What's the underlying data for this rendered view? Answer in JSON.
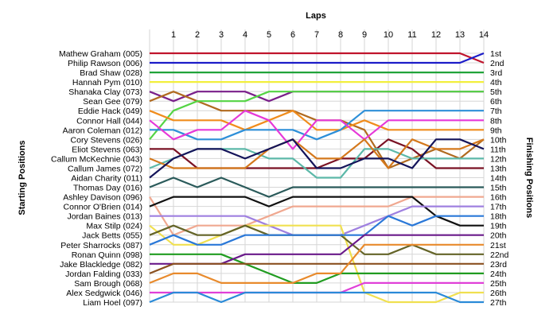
{
  "chart_data": {
    "type": "line",
    "title": "Laps",
    "xlabel": "Laps",
    "ylabel_left": "Starting Positions",
    "ylabel_right": "Finishing Positions",
    "x": [
      0,
      1,
      2,
      3,
      4,
      5,
      6,
      7,
      8,
      9,
      10,
      11,
      12,
      13,
      14
    ],
    "x_tick_labels": [
      "1",
      "2",
      "3",
      "4",
      "5",
      "6",
      "7",
      "8",
      "9",
      "10",
      "11",
      "12",
      "13",
      "14"
    ],
    "ylim": [
      1,
      27
    ],
    "grid": true,
    "start_labels": [
      "Mathew Graham (005)",
      "Philip Rawson (006)",
      "Brad Shaw (028)",
      "Hannah Pym (010)",
      "Shanaka Clay (073)",
      "Sean Gee (079)",
      "Eddie Hack (049)",
      "Connor Hall (044)",
      "Aaron Coleman (012)",
      "Cory Stevens (026)",
      "Eliot Stevens (063)",
      "Callum McKechnie (043)",
      "Callum James (072)",
      "Aidan Charity (011)",
      "Thomas Day (016)",
      "Ashley Davison (096)",
      "Connor O'Brien (014)",
      "Jordan Baines (013)",
      "Max Stilp (024)",
      "Jack Betts (055)",
      "Peter Sharrocks (087)",
      "Ronan Quinn (098)",
      "Jake Blackledge (082)",
      "Jordan Falding (033)",
      "Sam Brough (068)",
      "Alex Sedgwick (046)",
      "Liam Hoel (097)"
    ],
    "finish_labels": [
      "1st",
      "2nd",
      "3rd",
      "4th",
      "5th",
      "6th",
      "7th",
      "8th",
      "9th",
      "10th",
      "11th",
      "12th",
      "13th",
      "14th",
      "15th",
      "16th",
      "17th",
      "18th",
      "19th",
      "20th",
      "21st",
      "22nd",
      "23rd",
      "24th",
      "25th",
      "26th",
      "27th"
    ],
    "series": [
      {
        "color": "#c0142c",
        "values": [
          1,
          1,
          1,
          1,
          1,
          1,
          1,
          1,
          1,
          1,
          1,
          1,
          1,
          1,
          2
        ]
      },
      {
        "color": "#1c1cc8",
        "values": [
          2,
          2,
          2,
          2,
          2,
          2,
          2,
          2,
          2,
          2,
          2,
          2,
          2,
          2,
          1
        ]
      },
      {
        "color": "#21a33a",
        "values": [
          3,
          3,
          3,
          3,
          3,
          3,
          3,
          3,
          3,
          3,
          3,
          3,
          3,
          3,
          3
        ]
      },
      {
        "color": "#f2ef3c",
        "values": [
          4,
          4,
          4,
          4,
          4,
          4,
          4,
          4,
          4,
          4,
          4,
          4,
          4,
          4,
          4
        ]
      },
      {
        "color": "#7a1f8a",
        "values": [
          5,
          6,
          5,
          5,
          5,
          6,
          5,
          5,
          5,
          5,
          5,
          5,
          5,
          5,
          5
        ]
      },
      {
        "color": "#b06a1f",
        "values": [
          6,
          5,
          6,
          7,
          7,
          7,
          7,
          8,
          8,
          9,
          13,
          12,
          11,
          12,
          10
        ]
      },
      {
        "color": "#54d444",
        "values": [
          10,
          7,
          6,
          6,
          6,
          5,
          5,
          5,
          5,
          5,
          5,
          5,
          5,
          5,
          5
        ]
      },
      {
        "color": "#f08c1c",
        "values": [
          7,
          8,
          8,
          8,
          9,
          8,
          7,
          9,
          9,
          8,
          9,
          9,
          9,
          9,
          9
        ]
      },
      {
        "color": "#2d8fd8",
        "values": [
          9,
          9,
          10,
          10,
          9,
          9,
          9,
          10,
          9,
          7,
          7,
          7,
          7,
          7,
          7
        ]
      },
      {
        "color": "#e638d8",
        "values": [
          8,
          10,
          9,
          9,
          7,
          8,
          11,
          8,
          8,
          10,
          8,
          8,
          8,
          8,
          8
        ]
      },
      {
        "color": "#7a1224",
        "values": [
          11,
          11,
          13,
          13,
          13,
          13,
          13,
          13,
          12,
          12,
          10,
          11,
          13,
          13,
          13
        ]
      },
      {
        "color": "#5cb8a8",
        "values": [
          13,
          12,
          11,
          11,
          11,
          12,
          12,
          14,
          14,
          11,
          11,
          12,
          12,
          12,
          12
        ]
      },
      {
        "color": "#d4781c",
        "values": [
          12,
          13,
          13,
          13,
          13,
          11,
          10,
          12,
          12,
          10,
          13,
          10,
          11,
          11,
          10
        ]
      },
      {
        "color": "#14145a",
        "values": [
          14,
          12,
          11,
          11,
          12,
          11,
          10,
          13,
          13,
          12,
          12,
          13,
          10,
          10,
          11
        ]
      },
      {
        "color": "#2a5a5a",
        "values": [
          15,
          14,
          15,
          14,
          15,
          16,
          15,
          15,
          15,
          15,
          15,
          15,
          15,
          15,
          15
        ]
      },
      {
        "color": "#f0a890",
        "values": [
          16,
          20,
          19,
          19,
          19,
          18,
          17,
          17,
          17,
          17,
          17,
          16,
          16,
          16,
          16
        ]
      },
      {
        "color": "#111111",
        "values": [
          17,
          16,
          16,
          16,
          16,
          17,
          16,
          16,
          16,
          16,
          16,
          16,
          18,
          19,
          19
        ]
      },
      {
        "color": "#9f80e0",
        "values": [
          18,
          18,
          18,
          18,
          18,
          19,
          20,
          20,
          20,
          19,
          18,
          17,
          17,
          17,
          17
        ]
      },
      {
        "color": "#f0e050",
        "values": [
          19,
          21,
          21,
          20,
          19,
          19,
          19,
          19,
          19,
          26,
          27,
          27,
          27,
          26,
          26
        ]
      },
      {
        "color": "#646428",
        "values": [
          20,
          19,
          20,
          20,
          19,
          20,
          20,
          20,
          20,
          22,
          22,
          21,
          22,
          22,
          22
        ]
      },
      {
        "color": "#2a78d8",
        "values": [
          21,
          20,
          21,
          21,
          20,
          20,
          20,
          20,
          20,
          20,
          18,
          19,
          18,
          18,
          18
        ]
      },
      {
        "color": "#209c20",
        "values": [
          22,
          22,
          22,
          22,
          23,
          24,
          25,
          25,
          24,
          24,
          24,
          24,
          24,
          24,
          24
        ]
      },
      {
        "color": "#6a1a8a",
        "values": [
          23,
          23,
          23,
          23,
          22,
          22,
          22,
          22,
          22,
          20,
          20,
          20,
          20,
          20,
          20
        ]
      },
      {
        "color": "#8a5020",
        "values": [
          24,
          23,
          23,
          23,
          23,
          23,
          23,
          23,
          23,
          23,
          23,
          23,
          23,
          23,
          23
        ]
      },
      {
        "color": "#e88a2c",
        "values": [
          25,
          24,
          24,
          25,
          25,
          25,
          25,
          24,
          24,
          21,
          21,
          21,
          21,
          21,
          21
        ]
      },
      {
        "color": "#e040d8",
        "values": [
          26,
          26,
          26,
          26,
          26,
          26,
          26,
          26,
          26,
          25,
          25,
          25,
          25,
          25,
          25
        ]
      },
      {
        "color": "#2a8ad8",
        "values": [
          27,
          26,
          26,
          27,
          26,
          26,
          26,
          26,
          26,
          26,
          26,
          26,
          26,
          27,
          27
        ]
      }
    ]
  }
}
